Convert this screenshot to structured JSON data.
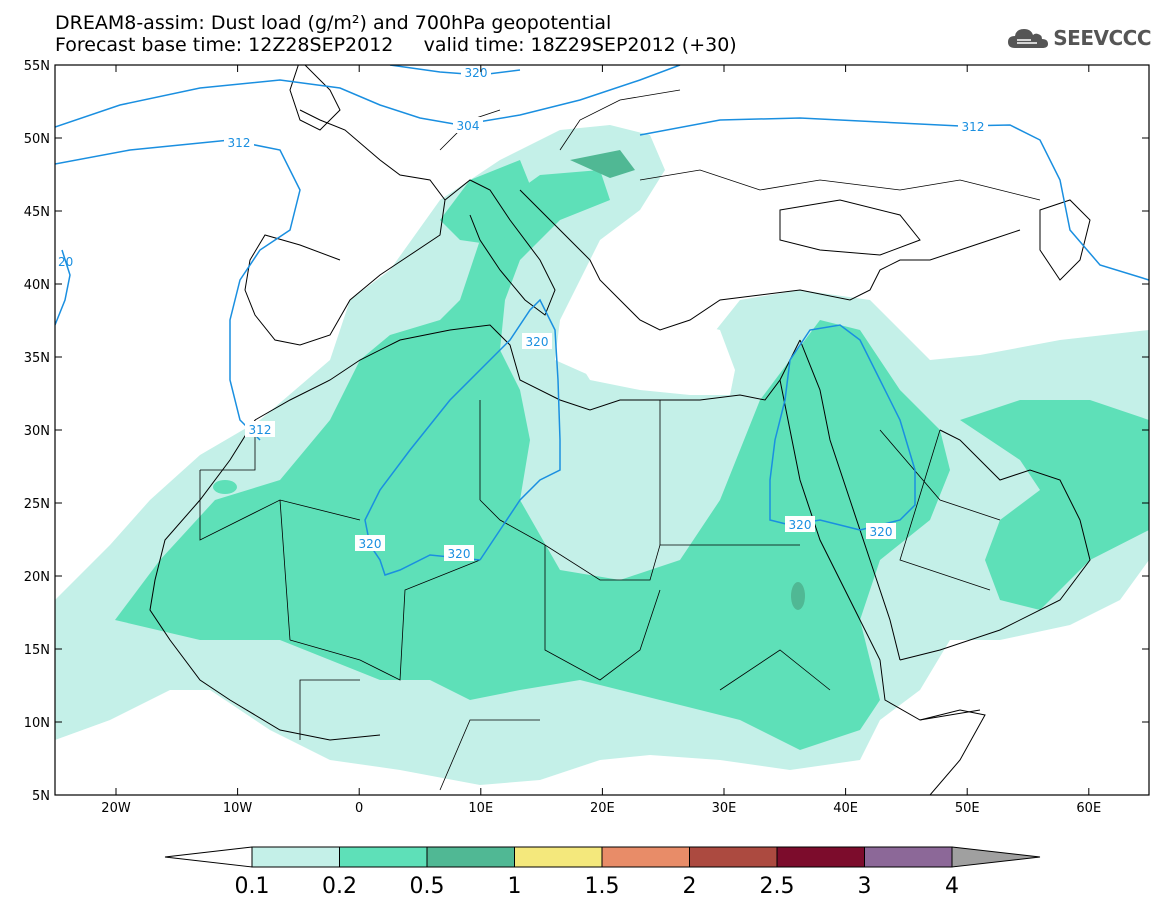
{
  "header": {
    "title": "DREAM8-assim: Dust load (g/m²) and 700hPa geopotential",
    "subtitle_left": "Forecast base time: 12Z28SEP2012",
    "subtitle_right": "valid time: 18Z29SEP2012 (+30)"
  },
  "logo": {
    "text": "SEEVCCC",
    "icon": "cloud-icon"
  },
  "map": {
    "lat_labels": [
      "55N",
      "50N",
      "45N",
      "40N",
      "35N",
      "30N",
      "25N",
      "20N",
      "15N",
      "10N",
      "5N"
    ],
    "lon_labels": [
      "20W",
      "10W",
      "0",
      "10E",
      "20E",
      "30E",
      "40E",
      "50E",
      "60E"
    ],
    "colors": {
      "frame": "#000000",
      "contour": "#1a8fe0",
      "coast": "#000000"
    },
    "contour_labels": [
      "304",
      "312",
      "312",
      "320",
      "320",
      "320",
      "320",
      "320",
      "320",
      "312",
      "20"
    ]
  },
  "colorbar": {
    "levels": [
      "0.1",
      "0.2",
      "0.5",
      "1",
      "1.5",
      "2",
      "2.5",
      "3",
      "4"
    ],
    "colors": [
      "#ffffff",
      "#c4f0e8",
      "#5ee0b8",
      "#50b894",
      "#f4e87c",
      "#e88c68",
      "#ac4a40",
      "#7c0c2c",
      "#8c6898",
      "#a0a0a0"
    ]
  }
}
